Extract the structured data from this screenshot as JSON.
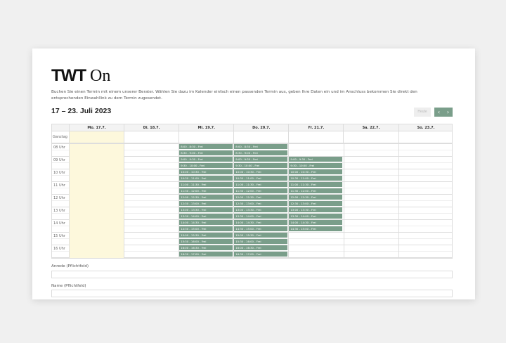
{
  "logo": {
    "bold": "TWT",
    "light": " On"
  },
  "intro": "Buchen Sie einen Termin mit einem unserer Berater. Wählen Sie dazu im Kalender einfach einen passenden Termin aus, geben Ihre Daten ein und im Anschluss bekommen Sie direkt den entsprechenden Einwahllink zu dem Termin zugesendet.",
  "range": "17 – 23. Juli 2023",
  "nav": {
    "today": "Heute",
    "prev": "‹",
    "next": "›"
  },
  "calendar": {
    "allday_label": "Ganztag",
    "days": [
      "Mo. 17.7.",
      "Di. 18.7.",
      "Mi. 19.7.",
      "Do. 20.7.",
      "Fr. 21.7.",
      "Sa. 22.7.",
      "So. 23.7."
    ],
    "today_index": 0,
    "hours": [
      "08 Uhr",
      "09 Uhr",
      "10 Uhr",
      "11 Uhr",
      "12 Uhr",
      "13 Uhr",
      "14 Uhr",
      "15 Uhr",
      "16 Uhr"
    ],
    "slot_colors": {
      "free": "#7a9e8a",
      "today": "#fdf8dc"
    },
    "slots": {
      "2": [
        "8:00 - 8:30 - Frei",
        "8:30 - 9:00 - Frei",
        "9:00 - 9:30 - Frei",
        "9:30 - 10:00 - Frei",
        "10:00 - 10:30 - Frei",
        "10:30 - 11:00 - Frei",
        "11:00 - 11:30 - Frei",
        "11:30 - 12:00 - Frei",
        "12:00 - 12:30 - Frei",
        "12:30 - 13:00 - Frei",
        "13:00 - 13:30 - Frei",
        "13:30 - 14:00 - Frei",
        "14:00 - 14:30 - Frei",
        "14:30 - 15:00 - Frei",
        "15:00 - 15:30 - Frei",
        "15:30 - 16:00 - Frei",
        "16:00 - 16:30 - Frei",
        "16:30 - 17:00 - Frei"
      ],
      "3": [
        "8:00 - 8:30 - Frei",
        "8:30 - 9:00 - Frei",
        "9:00 - 9:30 - Frei",
        "9:30 - 10:00 - Frei",
        "10:00 - 10:30 - Frei",
        "10:30 - 11:00 - Frei",
        "11:00 - 11:30 - Frei",
        "11:30 - 12:00 - Frei",
        "12:00 - 12:30 - Frei",
        "12:30 - 13:00 - Frei",
        "13:00 - 13:30 - Frei",
        "13:30 - 14:00 - Frei",
        "14:00 - 14:30 - Frei",
        "14:30 - 15:00 - Frei",
        "15:00 - 15:30 - Frei",
        "15:30 - 16:00 - Frei",
        "16:00 - 16:30 - Frei",
        "16:30 - 17:00 - Frei"
      ],
      "4": [
        "9:00 - 9:30 - Frei",
        "9:30 - 10:00 - Frei",
        "10:00 - 10:30 - Frei",
        "10:30 - 11:00 - Frei",
        "11:00 - 11:30 - Frei",
        "11:30 - 12:00 - Frei",
        "12:00 - 12:30 - Frei",
        "12:30 - 13:00 - Frei",
        "13:00 - 13:30 - Frei",
        "13:30 - 14:00 - Frei",
        "14:00 - 14:30 - Frei",
        "14:30 - 15:00 - Frei"
      ]
    }
  },
  "form": {
    "salutation_label": "Anrede (Pflichtfeld)",
    "name_label": "Name (Pflichtfeld)"
  }
}
